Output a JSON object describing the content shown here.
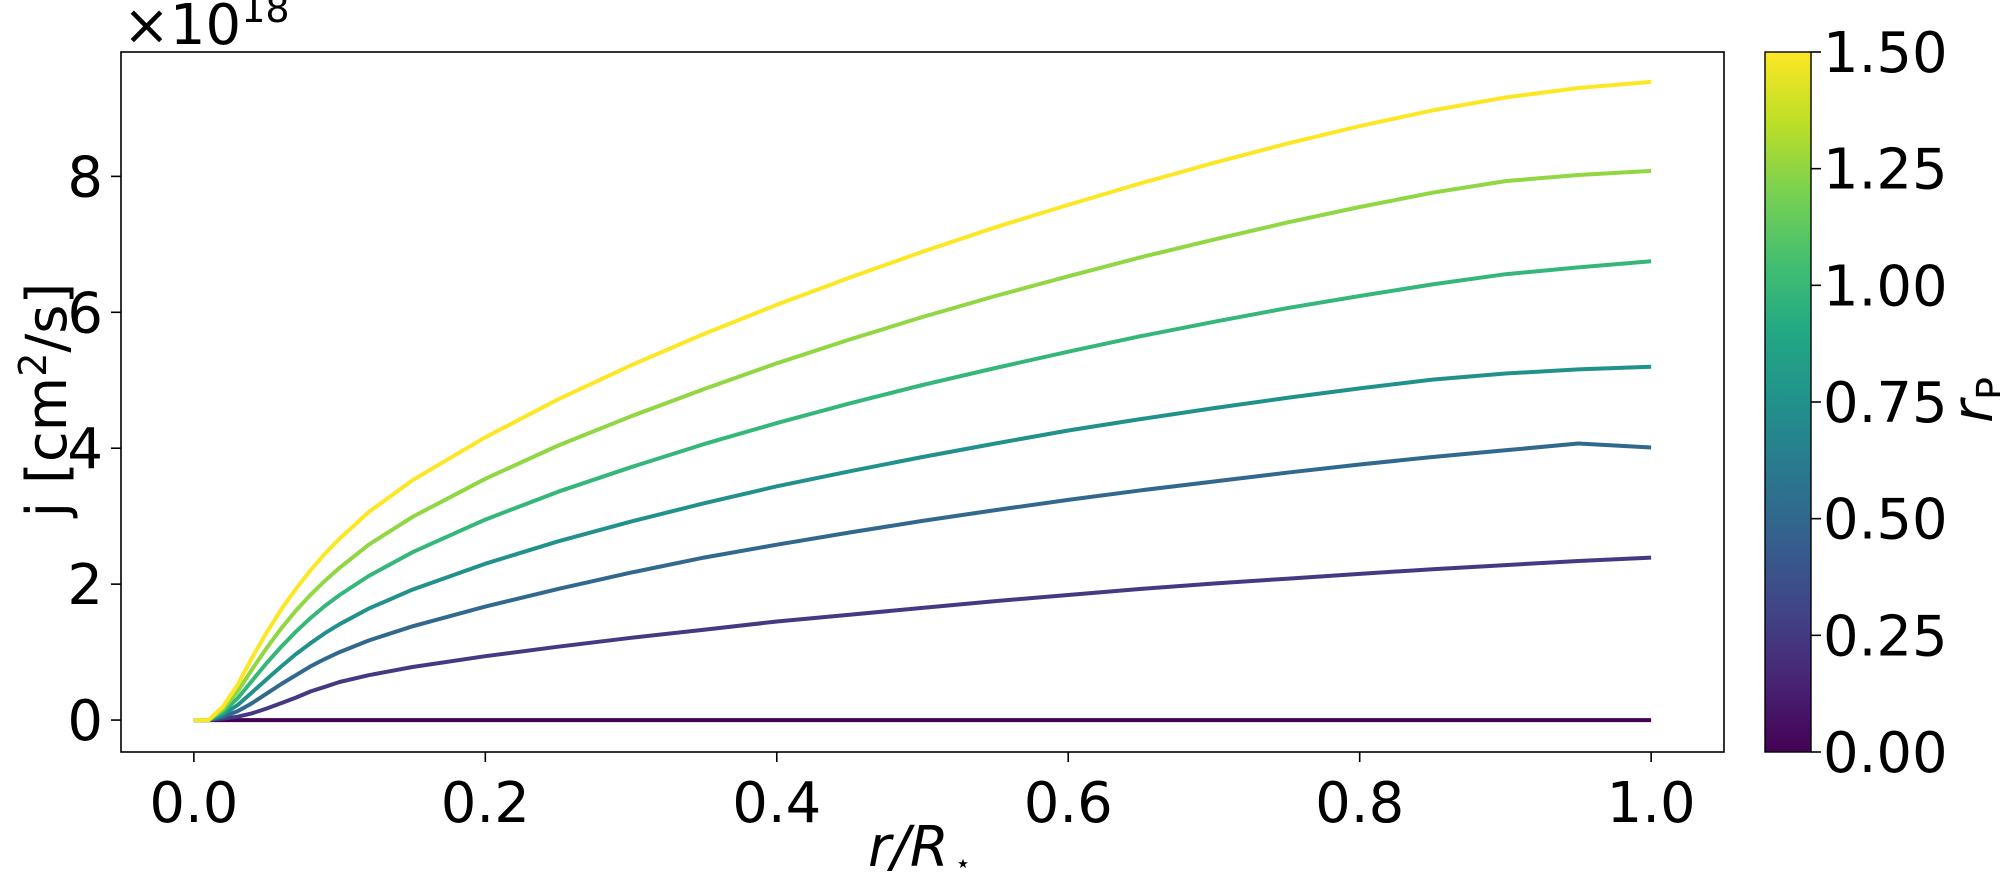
{
  "chart_data": {
    "type": "line",
    "title": "",
    "xlabel": "r/R",
    "xlabel_subscript": "⋆",
    "ylabel_main": "j [cm",
    "ylabel_sup": "2",
    "ylabel_tail": "/s]",
    "y_offset_text": "×10",
    "y_offset_exp": "18",
    "xlim": [
      -0.05,
      1.05
    ],
    "ylim": [
      -0.47,
      9.83
    ],
    "x_ticks": [
      "0.0",
      "0.2",
      "0.4",
      "0.6",
      "0.8",
      "1.0"
    ],
    "y_ticks": [
      "0",
      "2",
      "4",
      "6",
      "8"
    ],
    "grid": false,
    "colorbar": {
      "label": "r",
      "label_subscript": "P",
      "ticks": [
        "0.00",
        "0.25",
        "0.50",
        "0.75",
        "1.00",
        "1.25",
        "1.50"
      ],
      "range": [
        0.0,
        1.5
      ],
      "colormap": "viridis"
    },
    "x": [
      0.0,
      0.01,
      0.02,
      0.03,
      0.04,
      0.05,
      0.06,
      0.07,
      0.08,
      0.09,
      0.1,
      0.12,
      0.15,
      0.2,
      0.25,
      0.3,
      0.35,
      0.4,
      0.45,
      0.5,
      0.55,
      0.6,
      0.65,
      0.7,
      0.75,
      0.8,
      0.85,
      0.9,
      0.95,
      1.0
    ],
    "series": [
      {
        "rp": 0.0,
        "color": "#440154",
        "values": [
          0.0,
          0.0,
          0.0,
          0.0,
          0.0,
          0.0,
          0.0,
          0.0,
          0.0,
          0.0,
          0.0,
          0.0,
          0.0,
          0.0,
          0.0,
          0.0,
          0.0,
          0.0,
          0.0,
          0.0,
          0.0,
          0.0,
          0.0,
          0.0,
          0.0,
          0.0,
          0.0,
          0.0,
          0.0,
          0.0
        ]
      },
      {
        "rp": 0.25,
        "color": "#443983",
        "values": [
          0.0,
          0.0,
          0.02,
          0.05,
          0.1,
          0.17,
          0.25,
          0.33,
          0.42,
          0.49,
          0.56,
          0.66,
          0.78,
          0.94,
          1.08,
          1.21,
          1.33,
          1.45,
          1.55,
          1.65,
          1.75,
          1.84,
          1.93,
          2.01,
          2.08,
          2.15,
          2.22,
          2.28,
          2.34,
          2.39
        ]
      },
      {
        "rp": 0.5,
        "color": "#31688e",
        "values": [
          0.0,
          0.0,
          0.05,
          0.13,
          0.25,
          0.39,
          0.53,
          0.66,
          0.79,
          0.9,
          1.0,
          1.17,
          1.38,
          1.67,
          1.93,
          2.17,
          2.39,
          2.58,
          2.76,
          2.93,
          3.09,
          3.24,
          3.38,
          3.51,
          3.64,
          3.76,
          3.87,
          3.97,
          4.07,
          4.01
        ]
      },
      {
        "rp": 0.75,
        "color": "#21918c",
        "values": [
          0.0,
          0.0,
          0.08,
          0.22,
          0.41,
          0.6,
          0.79,
          0.97,
          1.13,
          1.28,
          1.41,
          1.64,
          1.92,
          2.3,
          2.63,
          2.92,
          3.19,
          3.44,
          3.66,
          3.87,
          4.07,
          4.26,
          4.43,
          4.59,
          4.74,
          4.88,
          5.01,
          5.1,
          5.16,
          5.2
        ]
      },
      {
        "rp": 1.0,
        "color": "#35b779",
        "values": [
          0.0,
          0.0,
          0.12,
          0.32,
          0.58,
          0.84,
          1.08,
          1.3,
          1.5,
          1.68,
          1.84,
          2.12,
          2.47,
          2.95,
          3.36,
          3.72,
          4.06,
          4.37,
          4.66,
          4.93,
          5.18,
          5.42,
          5.65,
          5.86,
          6.06,
          6.24,
          6.41,
          6.56,
          6.66,
          6.75
        ]
      },
      {
        "rp": 1.25,
        "color": "#90d743",
        "values": [
          0.0,
          0.0,
          0.16,
          0.42,
          0.75,
          1.06,
          1.35,
          1.61,
          1.84,
          2.05,
          2.24,
          2.58,
          2.99,
          3.55,
          4.04,
          4.47,
          4.87,
          5.25,
          5.6,
          5.93,
          6.24,
          6.53,
          6.81,
          7.07,
          7.32,
          7.55,
          7.76,
          7.93,
          8.02,
          8.08
        ]
      },
      {
        "rp": 1.5,
        "color": "#fde725",
        "values": [
          0.0,
          0.0,
          0.2,
          0.52,
          0.92,
          1.29,
          1.63,
          1.93,
          2.2,
          2.45,
          2.67,
          3.06,
          3.53,
          4.16,
          4.72,
          5.22,
          5.68,
          6.11,
          6.51,
          6.89,
          7.25,
          7.58,
          7.9,
          8.2,
          8.48,
          8.74,
          8.97,
          9.16,
          9.3,
          9.39
        ]
      }
    ]
  }
}
